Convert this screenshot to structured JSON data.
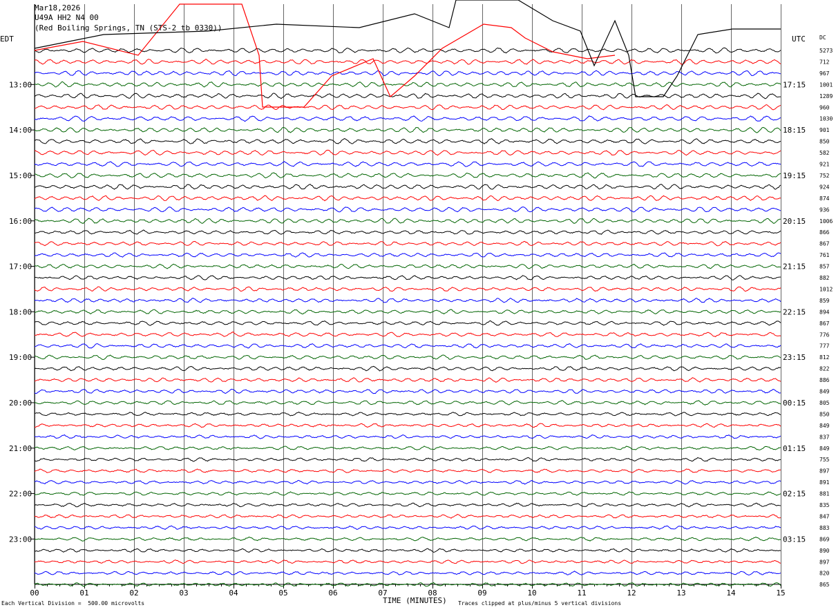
{
  "header": {
    "date": "Mar18,2026",
    "station": "U49A HH2 N4 00",
    "location": "(Red Boiling Springs, TN (STS-2 tb 0330))"
  },
  "left_tz": "EDT",
  "right_tz": "UTC",
  "dc_label": "DC",
  "footer": {
    "division": "Each Vertical Division =  500.00 microvolts",
    "xlabel": "TIME (MINUTES)",
    "clipped": "Traces clipped at plus/minus 5 vertical divisions"
  },
  "colors": [
    "#000000",
    "#ff0000",
    "#0000ff",
    "#006400"
  ],
  "chart_data": {
    "type": "line",
    "title": "U49A HH2 N4 00",
    "xlabel": "TIME (MINUTES)",
    "x_ticks": [
      "00",
      "01",
      "02",
      "03",
      "04",
      "05",
      "06",
      "07",
      "08",
      "09",
      "10",
      "11",
      "12",
      "13",
      "14",
      "15"
    ],
    "xlim": [
      0,
      15
    ],
    "trace_count": 48,
    "minutes_per_trace": 15,
    "left_labels": [
      "13:00",
      "14:00",
      "15:00",
      "16:00",
      "17:00",
      "18:00",
      "19:00",
      "20:00",
      "21:00",
      "22:00",
      "23:00"
    ],
    "right_labels": [
      "17:15",
      "18:15",
      "19:15",
      "20:15",
      "21:15",
      "22:15",
      "23:15",
      "00:15",
      "01:15",
      "02:15",
      "03:15"
    ],
    "dc_values": [
      5273,
      712,
      967,
      1001,
      1289,
      960,
      1030,
      901,
      850,
      582,
      921,
      752,
      924,
      874,
      936,
      1006,
      866,
      867,
      761,
      857,
      882,
      1012,
      859,
      894,
      867,
      776,
      777,
      812,
      822,
      886,
      849,
      805,
      850,
      849,
      837,
      849,
      755,
      897,
      891,
      881,
      835,
      847,
      883,
      869,
      890,
      897,
      820,
      865
    ]
  }
}
